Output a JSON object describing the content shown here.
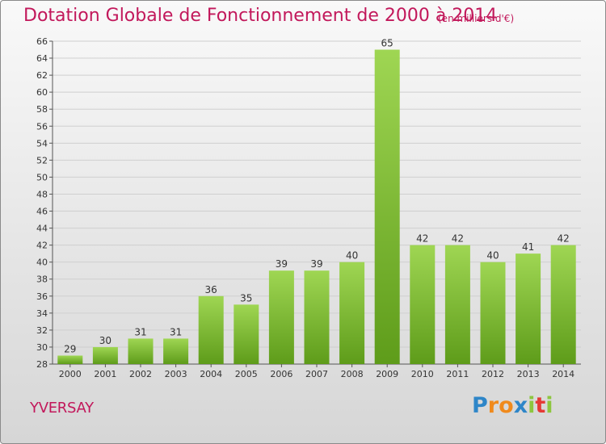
{
  "title": "Dotation Globale de Fonctionnement de 2000 à 2014",
  "subtitle": "(en milliers d'€)",
  "commune": "YVERSAY",
  "logo": {
    "letters": [
      "P",
      "r",
      "o",
      "x",
      "i",
      "t",
      "i"
    ],
    "colors": [
      "#2e86c8",
      "#f08a1c",
      "#f08a1c",
      "#2e86c8",
      "#8dc63f",
      "#e53935",
      "#8dc63f"
    ]
  },
  "colors": {
    "bar_light": "#9fd653",
    "bar_dark": "#5e9c1a",
    "title": "#c2185b"
  },
  "chart_data": {
    "type": "bar",
    "categories": [
      "2000",
      "2001",
      "2002",
      "2003",
      "2004",
      "2005",
      "2006",
      "2007",
      "2008",
      "2009",
      "2010",
      "2011",
      "2012",
      "2013",
      "2014"
    ],
    "values": [
      29,
      30,
      31,
      31,
      36,
      35,
      39,
      39,
      40,
      65,
      42,
      42,
      40,
      41,
      42
    ],
    "ylim": [
      28,
      66
    ],
    "yticks": [
      28,
      30,
      32,
      34,
      36,
      38,
      40,
      42,
      44,
      46,
      48,
      50,
      52,
      54,
      56,
      58,
      60,
      62,
      64,
      66
    ],
    "grid": true,
    "legend": "none"
  }
}
